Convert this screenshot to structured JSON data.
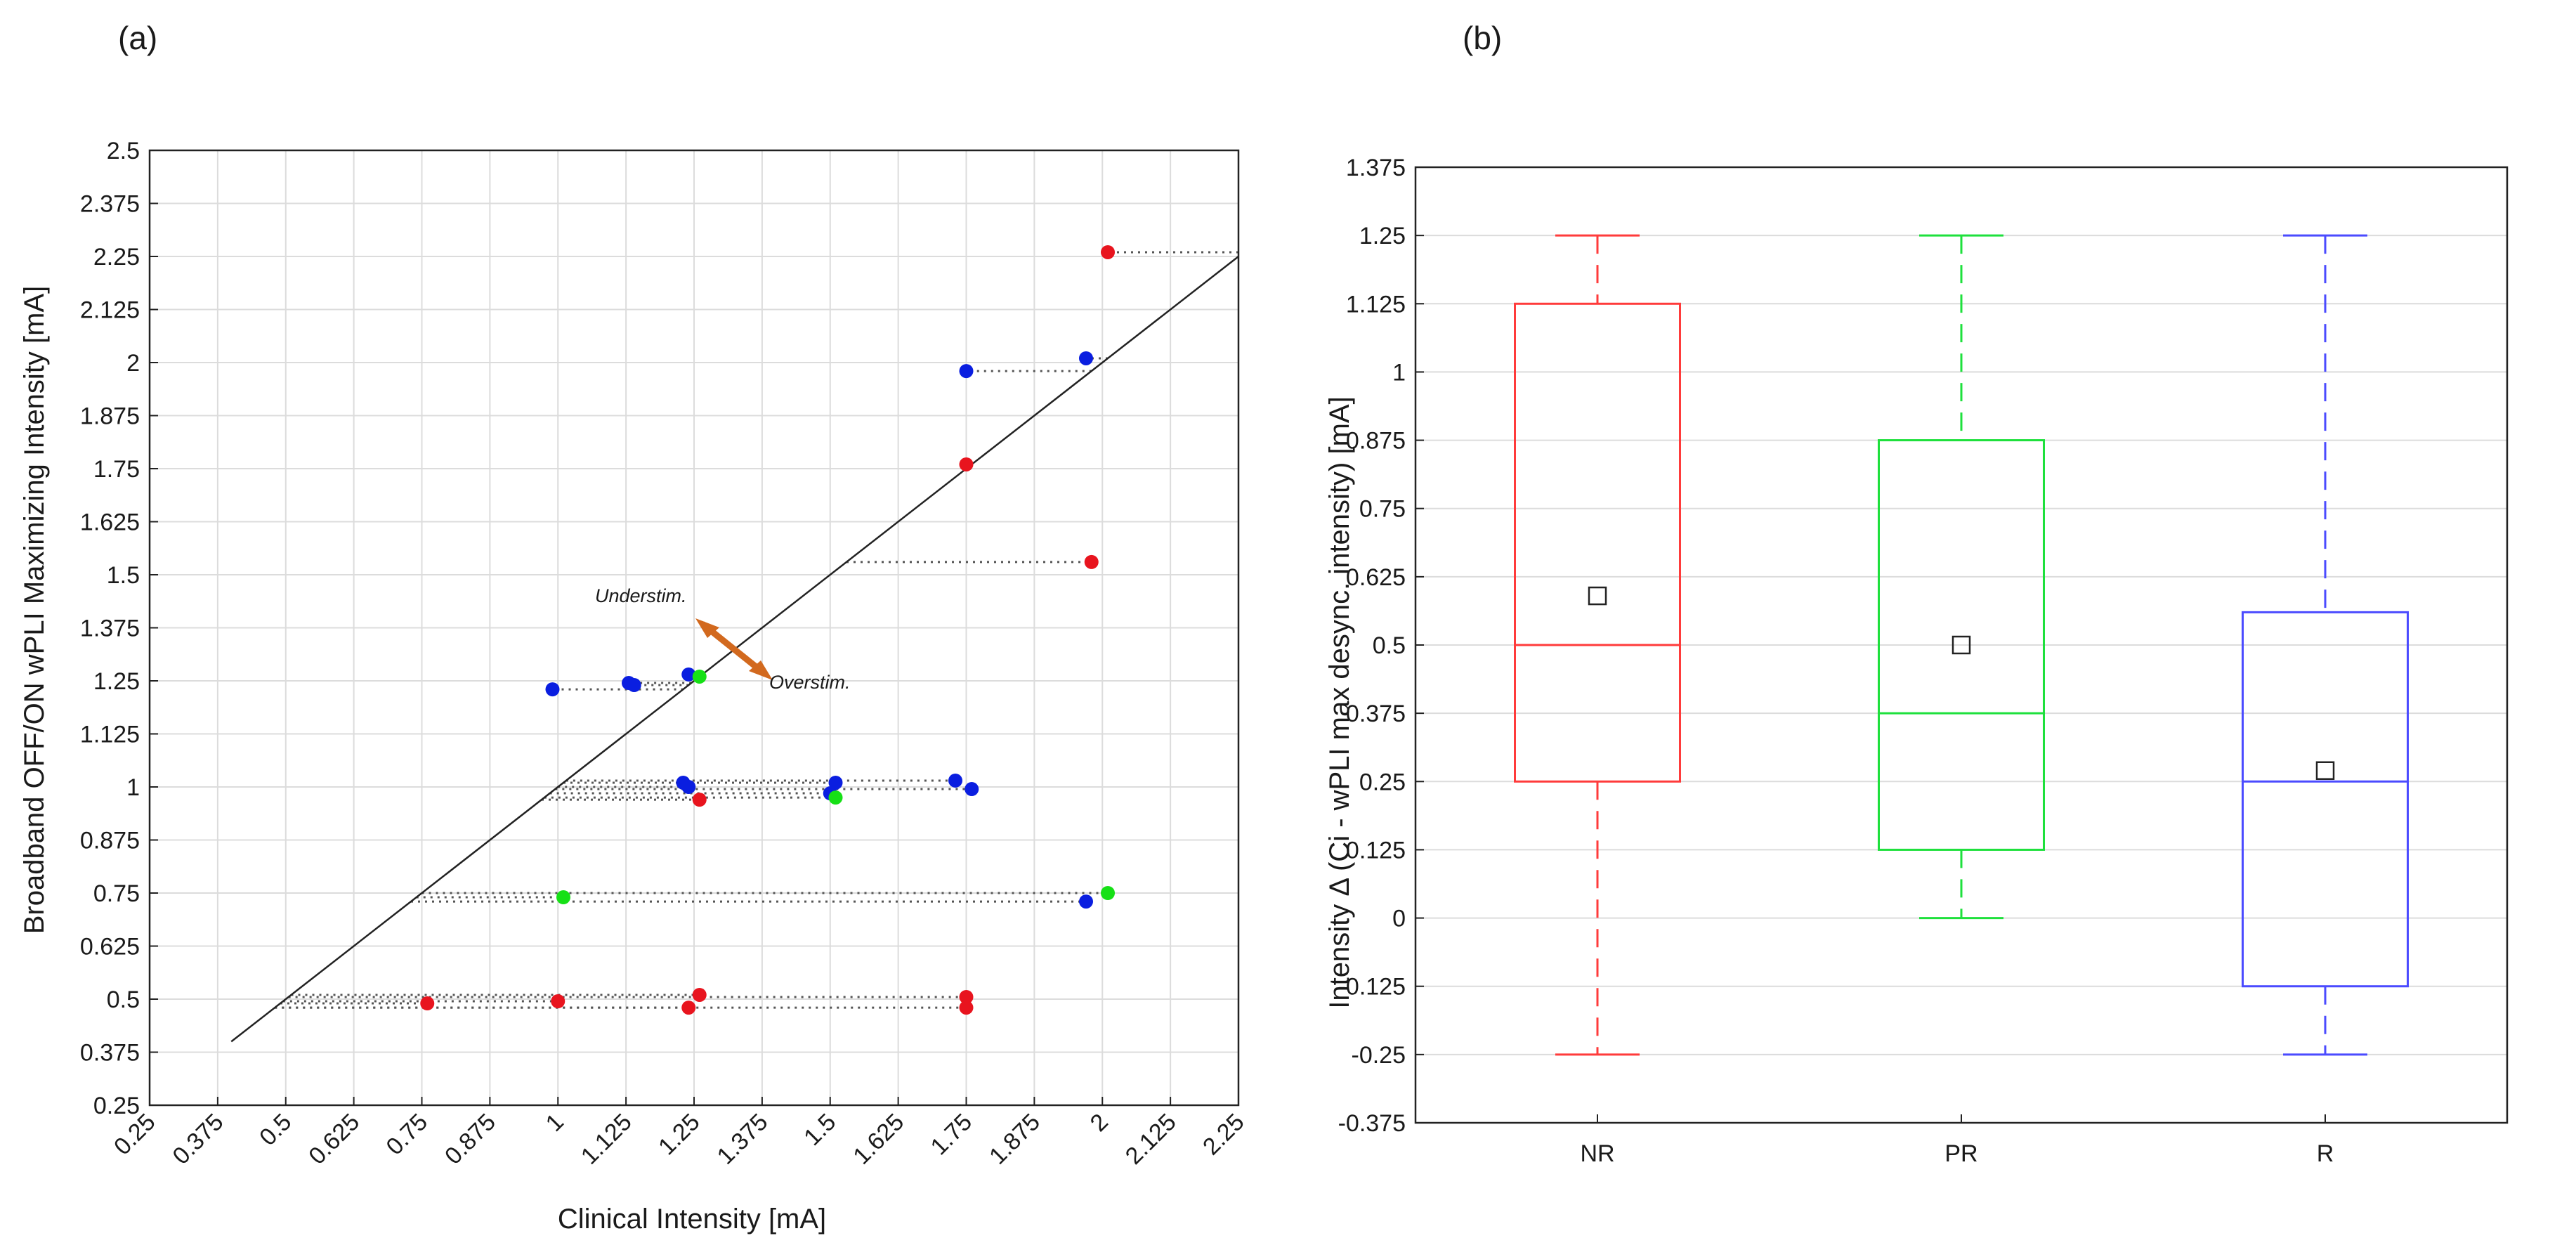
{
  "chart_data": [
    {
      "panel_label": "(a)",
      "type": "scatter",
      "xlabel": "Clinical Intensity [mA]",
      "ylabel": "Broadband OFF/ON wPLI Maximizing Intensity [mA]",
      "xlim": [
        0.25,
        2.25
      ],
      "ylim": [
        0.25,
        2.5
      ],
      "xticks": [
        "0.25",
        "0.375",
        "0.5",
        "0.625",
        "0.75",
        "0.875",
        "1",
        "1.125",
        "1.25",
        "1.375",
        "1.5",
        "1.625",
        "1.75",
        "1.875",
        "2",
        "2.125",
        "2.25"
      ],
      "yticks": [
        "0.25",
        "0.375",
        "0.5",
        "0.625",
        "0.75",
        "0.875",
        "1",
        "1.125",
        "1.25",
        "1.375",
        "1.5",
        "1.625",
        "1.75",
        "1.875",
        "2",
        "2.125",
        "2.25",
        "2.375",
        "2.5"
      ],
      "grid": true,
      "identity_line": {
        "x": [
          0.4,
          2.25
        ],
        "y": [
          0.4,
          2.25
        ]
      },
      "colors": {
        "red": "#e8141e",
        "blue": "#0a1ee0",
        "green": "#16e016",
        "arrow": "#d2691e"
      },
      "annotations": {
        "under": "Understim.",
        "over": "Overstim."
      },
      "points": [
        {
          "x": 2.01,
          "y": 2.26,
          "color": "red"
        },
        {
          "x": 1.75,
          "y": 1.76,
          "color": "red"
        },
        {
          "x": 1.98,
          "y": 1.53,
          "color": "red"
        },
        {
          "x": 0.76,
          "y": 0.49,
          "color": "red"
        },
        {
          "x": 1.0,
          "y": 0.495,
          "color": "red"
        },
        {
          "x": 1.24,
          "y": 0.48,
          "color": "red"
        },
        {
          "x": 1.26,
          "y": 0.51,
          "color": "red"
        },
        {
          "x": 1.75,
          "y": 0.505,
          "color": "red"
        },
        {
          "x": 1.75,
          "y": 0.48,
          "color": "red"
        },
        {
          "x": 1.26,
          "y": 0.97,
          "color": "red"
        },
        {
          "x": 1.75,
          "y": 1.98,
          "color": "blue"
        },
        {
          "x": 1.97,
          "y": 2.01,
          "color": "blue"
        },
        {
          "x": 0.99,
          "y": 1.23,
          "color": "blue"
        },
        {
          "x": 1.13,
          "y": 1.245,
          "color": "blue"
        },
        {
          "x": 1.14,
          "y": 1.24,
          "color": "blue"
        },
        {
          "x": 1.24,
          "y": 1.265,
          "color": "blue"
        },
        {
          "x": 1.23,
          "y": 1.01,
          "color": "blue"
        },
        {
          "x": 1.24,
          "y": 1.0,
          "color": "blue"
        },
        {
          "x": 1.5,
          "y": 0.985,
          "color": "blue"
        },
        {
          "x": 1.51,
          "y": 1.01,
          "color": "blue"
        },
        {
          "x": 1.73,
          "y": 1.015,
          "color": "blue"
        },
        {
          "x": 1.76,
          "y": 0.995,
          "color": "blue"
        },
        {
          "x": 1.97,
          "y": 0.73,
          "color": "blue"
        },
        {
          "x": 1.26,
          "y": 1.26,
          "color": "green"
        },
        {
          "x": 1.51,
          "y": 0.975,
          "color": "green"
        },
        {
          "x": 1.01,
          "y": 0.74,
          "color": "green"
        },
        {
          "x": 2.01,
          "y": 0.75,
          "color": "green"
        }
      ]
    },
    {
      "panel_label": "(b)",
      "type": "box",
      "ylabel": "Intensity Δ (Ci - wPLI max desync. intensity) [mA]",
      "xlabel": "",
      "ylim": [
        -0.375,
        1.375
      ],
      "yticks": [
        "1.375",
        "1.25",
        "1.125",
        "1",
        "0.875",
        "0.75",
        "0.625",
        "0.5",
        "0.375",
        "0.25",
        "0.125",
        "0",
        "-0.125",
        "-0.25",
        "-0.375"
      ],
      "grid": true,
      "categories": [
        "NR",
        "PR",
        "R"
      ],
      "boxes": [
        {
          "name": "NR",
          "color": "#ff3b3b",
          "min": -0.25,
          "q1": 0.25,
          "median": 0.5,
          "q3": 1.125,
          "max": 1.25,
          "mean": 0.59
        },
        {
          "name": "PR",
          "color": "#1ee03c",
          "min": 0.0,
          "q1": 0.125,
          "median": 0.375,
          "q3": 0.875,
          "max": 1.25,
          "mean": 0.5
        },
        {
          "name": "R",
          "color": "#4b4bff",
          "min": -0.25,
          "q1": -0.125,
          "median": 0.25,
          "q3": 0.56,
          "max": 1.25,
          "mean": 0.27
        }
      ]
    }
  ]
}
